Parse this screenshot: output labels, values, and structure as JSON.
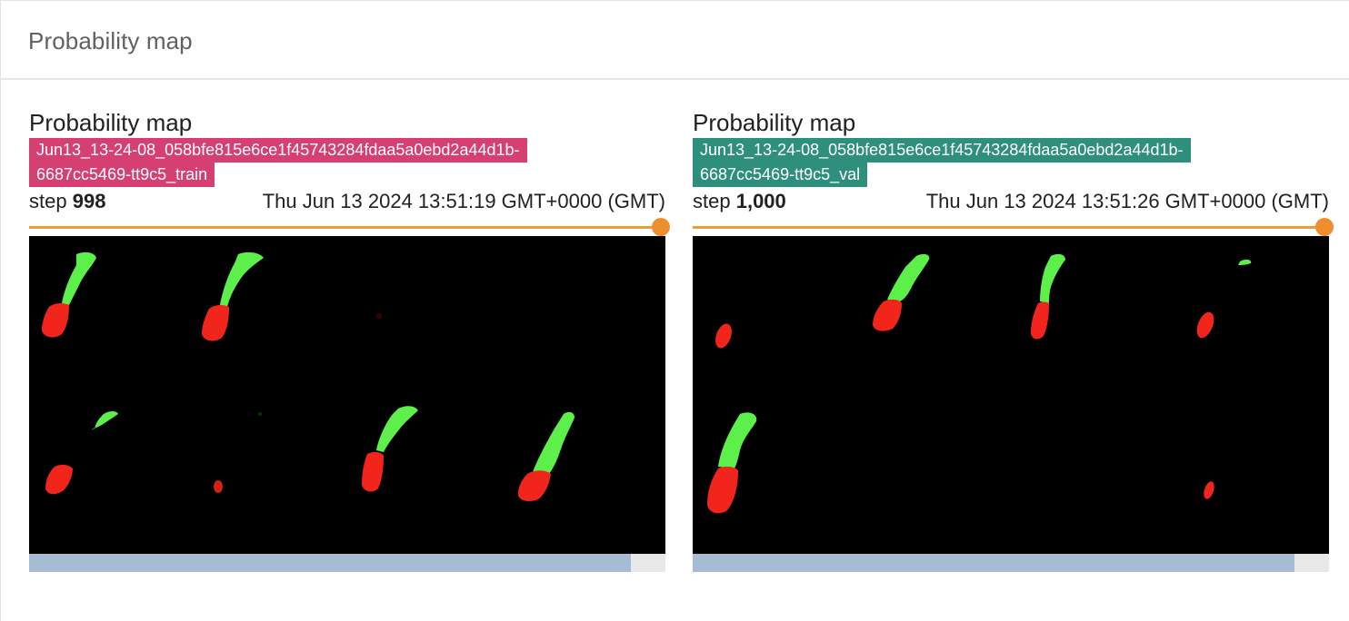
{
  "section": {
    "title": "Probability map"
  },
  "cards": [
    {
      "title": "Probability map",
      "run_lines": [
        "Jun13_13-24-08_058bfe815e6ce1f45743284fdaa5a0ebd2a44d1b-",
        "6687cc5469-tt9c5_train"
      ],
      "run_color": "#d63f72",
      "step_label": "step",
      "step_value": "998",
      "timestamp": "Thu Jun 13 2024 13:51:19 GMT+0000 (GMT)",
      "slider_position": 1.0,
      "scroll_fraction": 0.94
    },
    {
      "title": "Probability map",
      "run_lines": [
        "Jun13_13-24-08_058bfe815e6ce1f45743284fdaa5a0ebd2a44d1b-",
        "6687cc5469-tt9c5_val"
      ],
      "run_color": "#2f8f7d",
      "step_label": "step",
      "step_value": "1,000",
      "timestamp": "Thu Jun 13 2024 13:51:26 GMT+0000 (GMT)",
      "slider_position": 1.0,
      "scroll_fraction": 0.94
    }
  ],
  "colors": {
    "accent_slider": "#ef8e2c",
    "segment_green": "#5ef04a",
    "segment_red": "#f2251c",
    "scroll_thumb": "#a5bcd4"
  }
}
